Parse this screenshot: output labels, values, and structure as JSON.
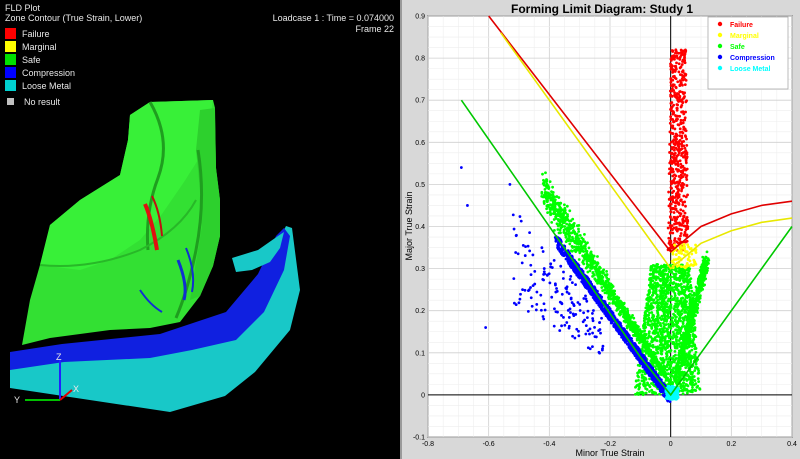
{
  "viewport": {
    "title": "FLD Plot",
    "subtitle": "Zone Contour (True Strain, Lower)",
    "loadcase": "Loadcase 1 : Time = 0.074000",
    "frame": "Frame 22",
    "legend": [
      {
        "label": "Failure",
        "color": "#ff0000"
      },
      {
        "label": "Marginal",
        "color": "#ffff00"
      },
      {
        "label": "Safe",
        "color": "#00e000"
      },
      {
        "label": "Compression",
        "color": "#0000ff"
      },
      {
        "label": "Loose Metal",
        "color": "#00d0d0"
      }
    ],
    "no_result": {
      "label": "No result",
      "color": "#c0c0c0"
    },
    "triad": {
      "x": "X",
      "y": "Y",
      "z": "Z"
    }
  },
  "chart_data": {
    "type": "scatter",
    "title": "Forming Limit Diagram: Study 1",
    "xlabel": "Minor True Strain",
    "ylabel": "Major True Strain",
    "xlim": [
      -0.8,
      0.4
    ],
    "ylim": [
      -0.1,
      0.9
    ],
    "x_ticks": [
      "-0.8",
      "-0.6",
      "-0.4",
      "-0.2",
      "0",
      "0.2",
      "0.4"
    ],
    "y_ticks": [
      "-0.1",
      "0",
      "0.1",
      "0.2",
      "0.3",
      "0.4",
      "0.5",
      "0.6",
      "0.7",
      "0.8",
      "0.9"
    ],
    "grid": true,
    "legend_position": "top-right",
    "series": [
      {
        "name": "Failure",
        "color": "#ff0000"
      },
      {
        "name": "Marginal",
        "color": "#ffff00"
      },
      {
        "name": "Safe",
        "color": "#00ff00"
      },
      {
        "name": "Compression",
        "color": "#0000ff"
      },
      {
        "name": "Loose Metal",
        "color": "#00ffff"
      }
    ],
    "limit_curves": {
      "failure": {
        "color": "#e00000",
        "points": [
          [
            -0.6,
            0.9
          ],
          [
            0,
            0.34
          ],
          [
            0.1,
            0.4
          ],
          [
            0.2,
            0.43
          ],
          [
            0.3,
            0.45
          ],
          [
            0.4,
            0.46
          ]
        ]
      },
      "marginal": {
        "color": "#e8e800",
        "points": [
          [
            -0.56,
            0.86
          ],
          [
            0,
            0.3
          ],
          [
            0.1,
            0.36
          ],
          [
            0.2,
            0.39
          ],
          [
            0.3,
            0.41
          ],
          [
            0.4,
            0.42
          ]
        ]
      },
      "safe": {
        "color": "#00c800",
        "points": [
          [
            -0.69,
            0.7
          ],
          [
            -0.1,
            0.09
          ],
          [
            0,
            0
          ],
          [
            0.4,
            0.4
          ]
        ]
      }
    }
  }
}
